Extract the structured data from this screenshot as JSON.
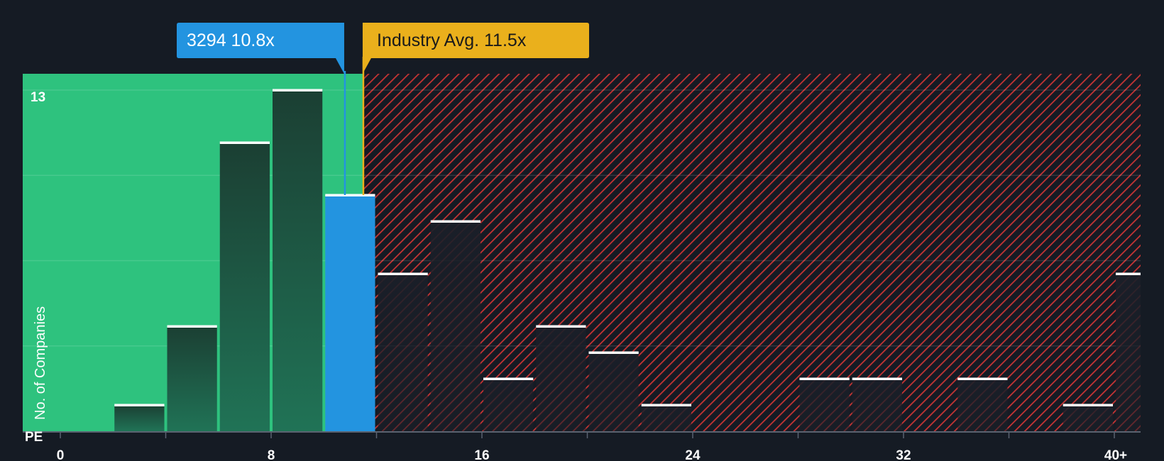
{
  "chart_data": {
    "type": "bar",
    "title": "",
    "xlabel": "PE",
    "ylabel": "No. of Companies",
    "x_tick_labels": [
      "0",
      "8",
      "16",
      "24",
      "32",
      "40+"
    ],
    "x_tick_values": [
      0,
      8,
      16,
      24,
      32,
      40
    ],
    "y_max_label": "13",
    "ylim": [
      0,
      13.5
    ],
    "bin_width": 2,
    "bins": [
      {
        "start": 0,
        "count": 0
      },
      {
        "start": 2,
        "count": 1
      },
      {
        "start": 4,
        "count": 4
      },
      {
        "start": 6,
        "count": 11
      },
      {
        "start": 8,
        "count": 13
      },
      {
        "start": 10,
        "count": 9,
        "highlight": true
      },
      {
        "start": 12,
        "count": 6
      },
      {
        "start": 14,
        "count": 8
      },
      {
        "start": 16,
        "count": 2
      },
      {
        "start": 18,
        "count": 4
      },
      {
        "start": 20,
        "count": 3
      },
      {
        "start": 22,
        "count": 1
      },
      {
        "start": 24,
        "count": 0
      },
      {
        "start": 26,
        "count": 0
      },
      {
        "start": 28,
        "count": 2
      },
      {
        "start": 30,
        "count": 2
      },
      {
        "start": 32,
        "count": 0
      },
      {
        "start": 34,
        "count": 2
      },
      {
        "start": 36,
        "count": 0
      },
      {
        "start": 38,
        "count": 1
      },
      {
        "start": 40,
        "count": 6
      }
    ],
    "company": {
      "label": "3294 10.8x",
      "value": 10.8
    },
    "industry": {
      "label": "Industry Avg. 11.5x",
      "value": 11.5
    }
  },
  "colors": {
    "background": "#151b24",
    "undervalued_zone": "#2ec27e",
    "overvalued_hatch": "#d23a3a",
    "bar_dark": "#1d4a3a",
    "bar_overvalued": "#1c222c",
    "bar_highlight": "#2394e0",
    "bar_cap": "#ffffff",
    "company_callout": "#2394e0",
    "industry_callout": "#eab01c",
    "industry_text": "#1a1a1a",
    "company_text": "#ffffff"
  }
}
